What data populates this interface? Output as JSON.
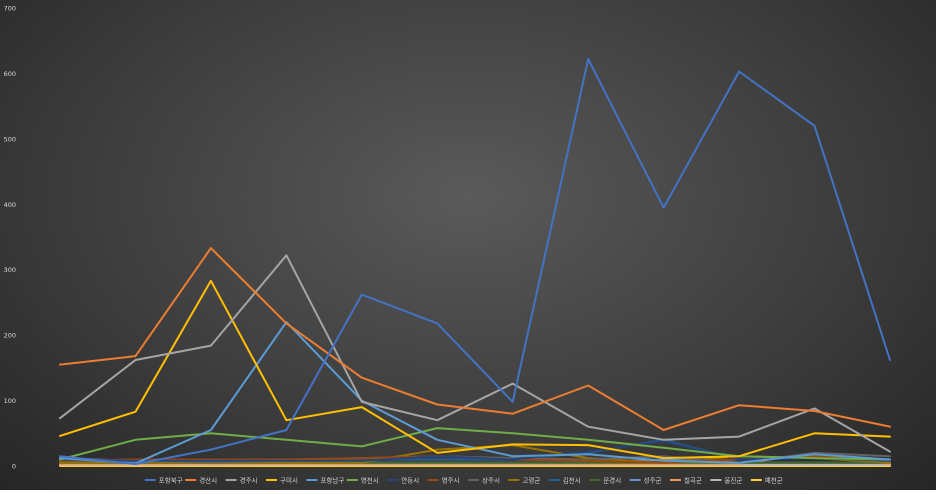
{
  "chart_data": {
    "type": "line",
    "title": "",
    "xlabel": "",
    "ylabel": "",
    "ylim": [
      0,
      700
    ],
    "y_ticks": [
      "0",
      "100",
      "200",
      "300",
      "400",
      "500",
      "600",
      "700"
    ],
    "grid": false,
    "legend": "bottom",
    "x_count": 12,
    "series": [
      {
        "name": "포항북구",
        "color": "#4472c4",
        "values": [
          15,
          3,
          25,
          55,
          262,
          218,
          98,
          622,
          395,
          603,
          520,
          162
        ]
      },
      {
        "name": "경산시",
        "color": "#ed7d31",
        "values": [
          155,
          168,
          333,
          218,
          135,
          94,
          80,
          123,
          55,
          93,
          84,
          60
        ]
      },
      {
        "name": "경주시",
        "color": "#a5a5a5",
        "values": [
          73,
          162,
          184,
          322,
          98,
          70,
          126,
          60,
          40,
          45,
          88,
          22
        ]
      },
      {
        "name": "구미시",
        "color": "#ffc000",
        "values": [
          46,
          83,
          283,
          70,
          90,
          20,
          33,
          32,
          12,
          15,
          50,
          45
        ]
      },
      {
        "name": "포항남구",
        "color": "#5b9bd5",
        "values": [
          12,
          4,
          55,
          220,
          100,
          40,
          15,
          18,
          8,
          5,
          18,
          10
        ]
      },
      {
        "name": "영천시",
        "color": "#70ad47",
        "values": [
          10,
          40,
          50,
          40,
          30,
          58,
          50,
          40,
          28,
          15,
          12,
          10
        ]
      },
      {
        "name": "안동시",
        "color": "#264478",
        "values": [
          10,
          8,
          8,
          8,
          8,
          15,
          10,
          22,
          38,
          10,
          12,
          8
        ]
      },
      {
        "name": "영주시",
        "color": "#9e480e",
        "values": [
          8,
          10,
          10,
          10,
          12,
          15,
          10,
          8,
          5,
          10,
          15,
          8
        ]
      },
      {
        "name": "상주시",
        "color": "#636363",
        "values": [
          12,
          8,
          6,
          8,
          12,
          15,
          12,
          10,
          15,
          5,
          20,
          15
        ]
      },
      {
        "name": "고령군",
        "color": "#997300",
        "values": [
          5,
          5,
          5,
          5,
          5,
          25,
          32,
          12,
          5,
          15,
          12,
          5
        ]
      },
      {
        "name": "김천시",
        "color": "#255e91",
        "values": [
          5,
          5,
          5,
          5,
          10,
          10,
          10,
          20,
          40,
          10,
          15,
          8
        ]
      },
      {
        "name": "문경시",
        "color": "#43682b",
        "values": [
          5,
          5,
          5,
          5,
          5,
          5,
          5,
          5,
          5,
          5,
          5,
          5
        ]
      },
      {
        "name": "성주군",
        "color": "#698ed0",
        "values": [
          5,
          5,
          5,
          5,
          5,
          5,
          5,
          5,
          10,
          5,
          5,
          5
        ]
      },
      {
        "name": "칠곡군",
        "color": "#f1975a",
        "values": [
          3,
          3,
          3,
          3,
          3,
          3,
          3,
          3,
          3,
          3,
          20,
          3
        ]
      },
      {
        "name": "울진군",
        "color": "#b7b7b7",
        "values": [
          2,
          2,
          2,
          2,
          2,
          2,
          2,
          2,
          2,
          2,
          2,
          2
        ]
      },
      {
        "name": "예천군",
        "color": "#ffcd33",
        "values": [
          0,
          0,
          0,
          0,
          0,
          0,
          0,
          0,
          0,
          0,
          0,
          0
        ]
      }
    ]
  }
}
